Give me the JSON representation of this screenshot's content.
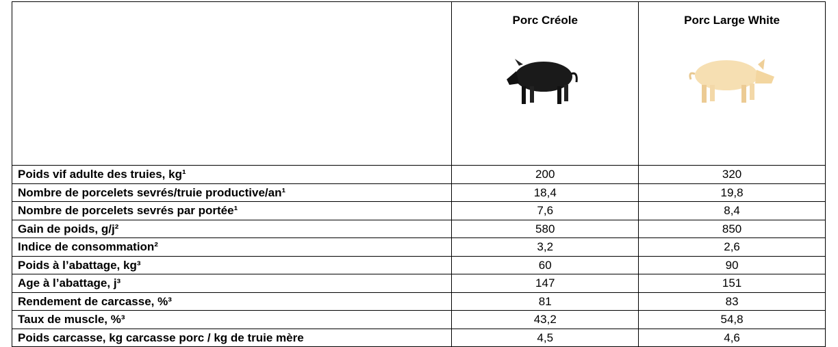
{
  "table": {
    "columns": [
      "",
      "Porc Créole",
      "Porc Large White"
    ],
    "rows": [
      [
        "Poids vif adulte des truies, kg¹",
        "200",
        "320"
      ],
      [
        "Nombre de porcelets sevrés/truie productive/an¹",
        "18,4",
        "19,8"
      ],
      [
        "Nombre de porcelets sevrés par portée¹",
        "7,6",
        "8,4"
      ],
      [
        "Gain de poids, g/j²",
        "580",
        "850"
      ],
      [
        "Indice de consommation²",
        "3,2",
        "2,6"
      ],
      [
        "Poids à l’abattage, kg³",
        "60",
        "90"
      ],
      [
        "Age à l’abattage, j³",
        "147",
        "151"
      ],
      [
        "Rendement de carcasse, %³",
        "81",
        "83"
      ],
      [
        "Taux de muscle, %³",
        "43,2",
        "54,8"
      ],
      [
        "Poids carcasse, kg carcasse porc / kg de truie mère",
        "4,5",
        "4,6"
      ]
    ]
  }
}
